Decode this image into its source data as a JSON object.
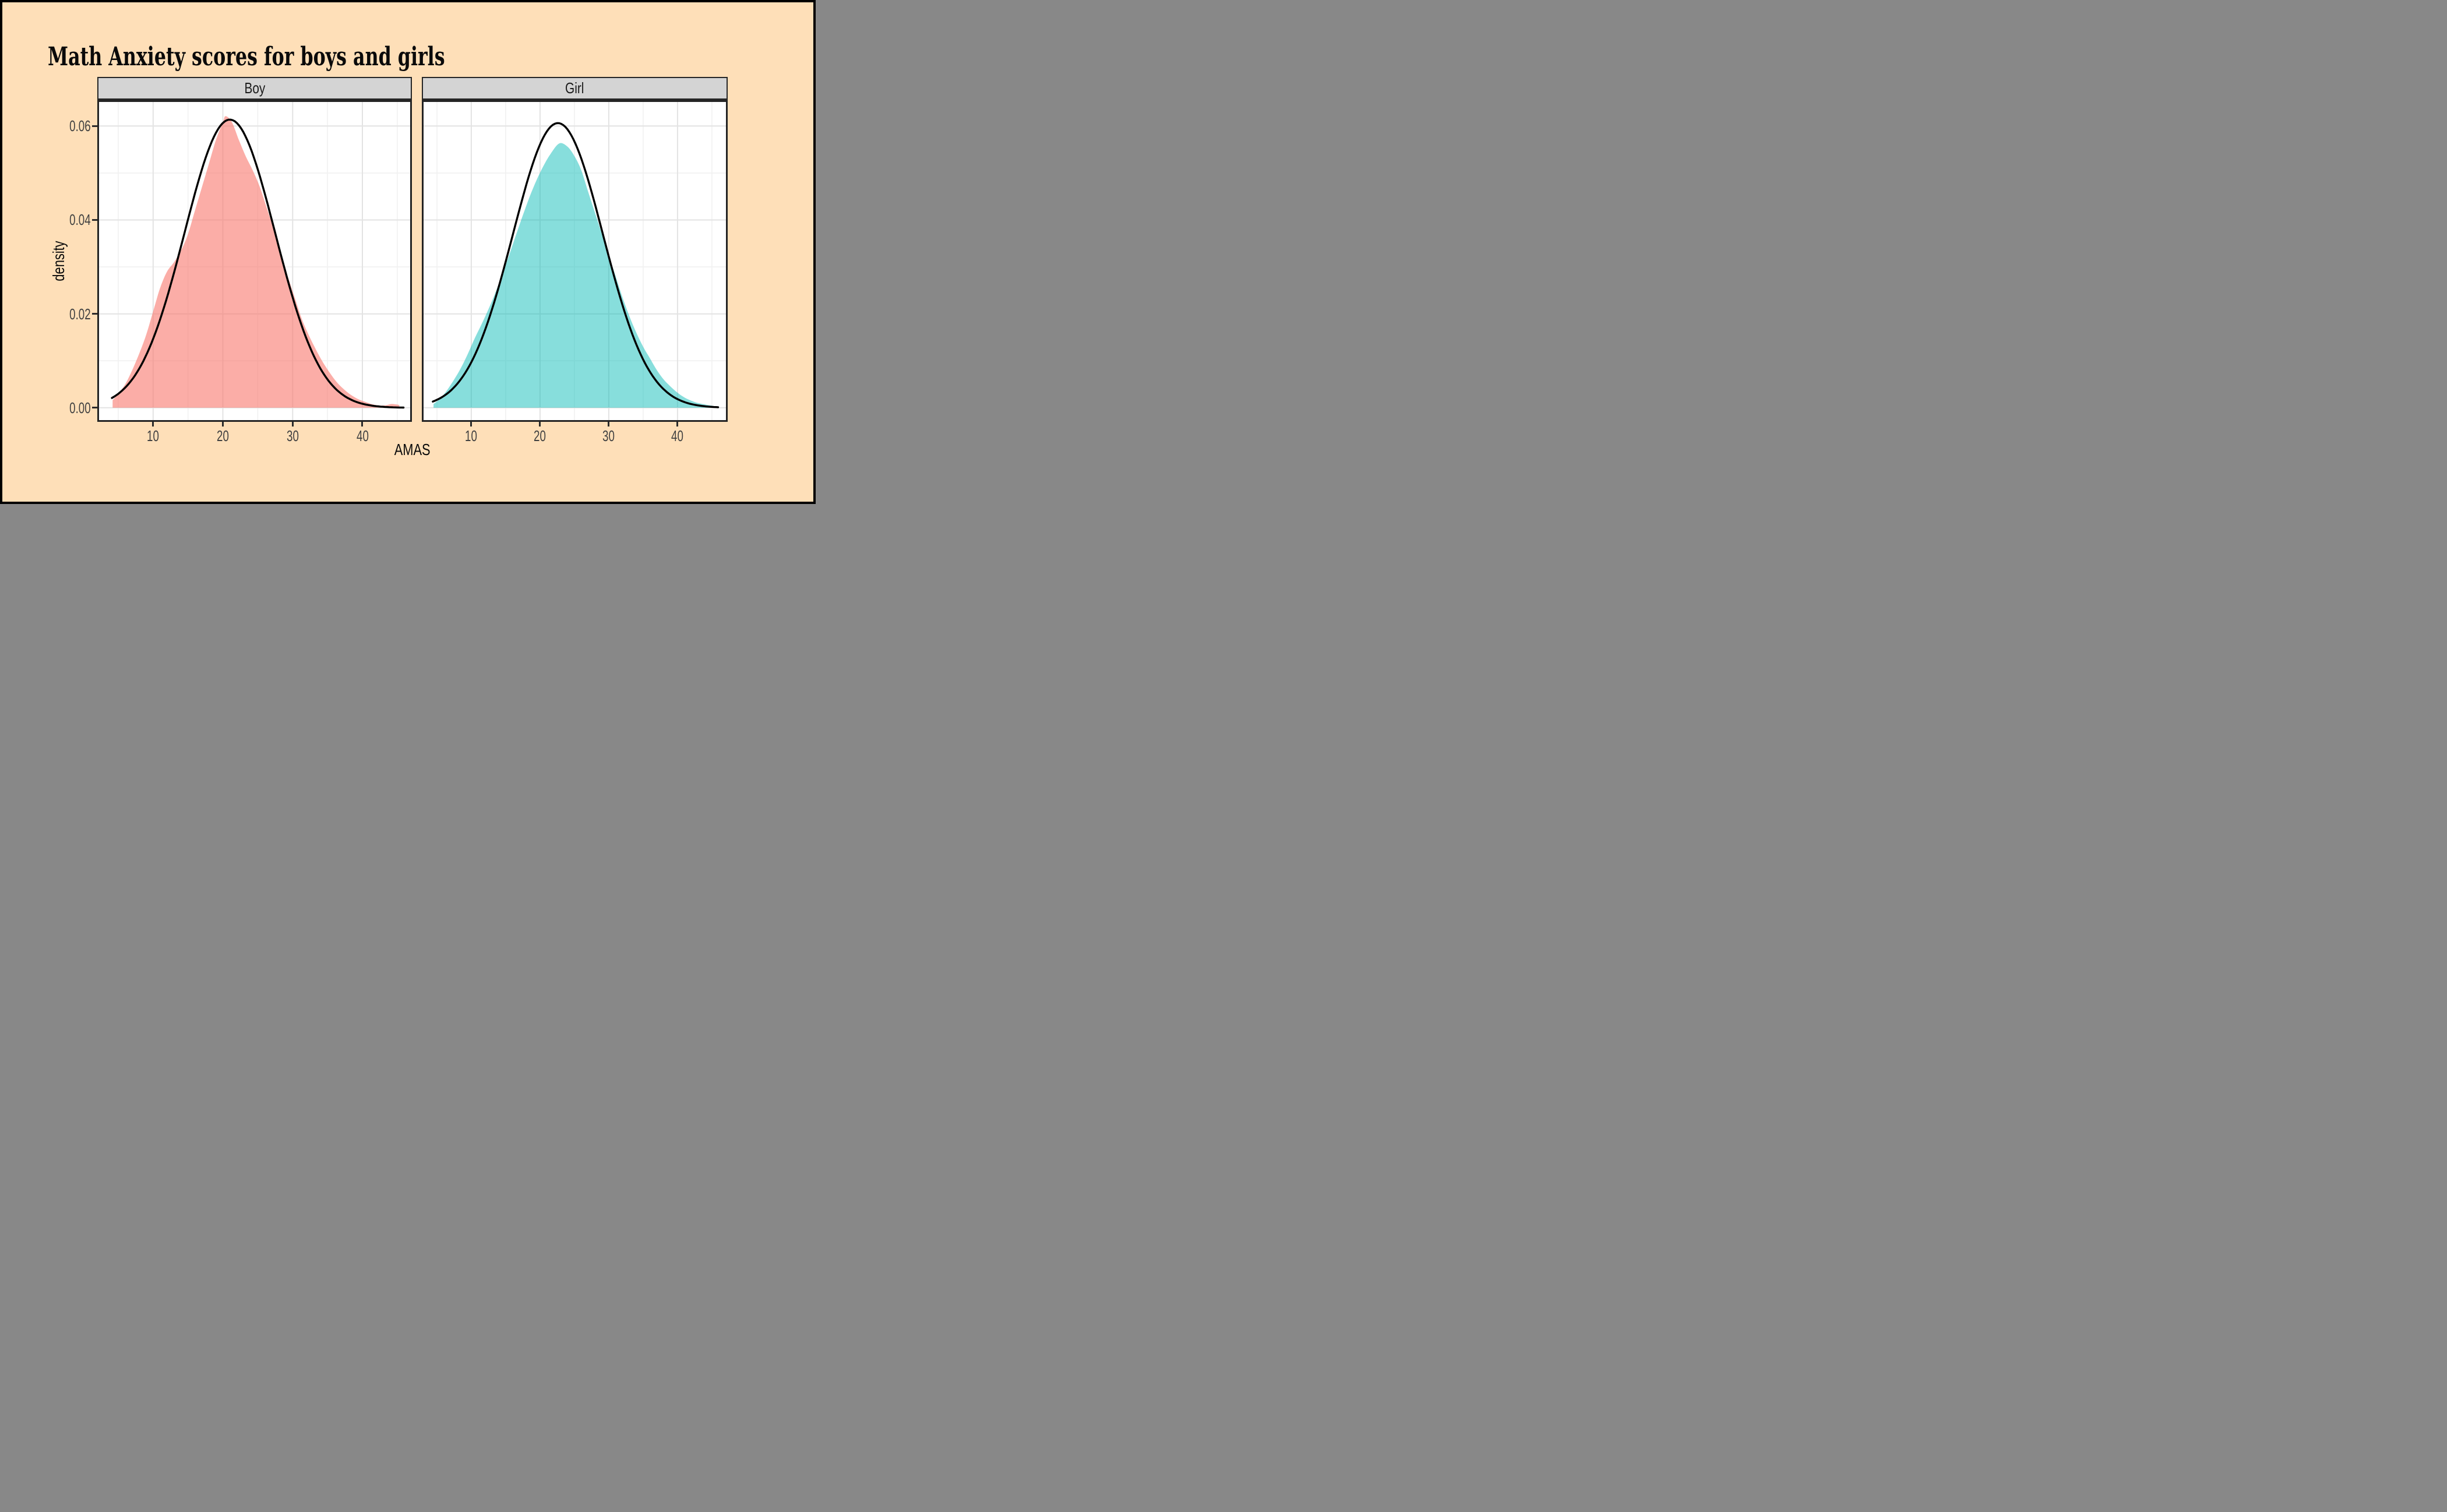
{
  "chart_data": {
    "type": "area",
    "title": "Math Anxiety scores for boys and girls",
    "xlabel": "AMAS",
    "ylabel": "density",
    "legend": "none",
    "grid": true,
    "ylim": [
      -0.003,
      0.0655
    ],
    "y_ticks": [
      {
        "v": 0.0,
        "label": "0.00"
      },
      {
        "v": 0.02,
        "label": "0.02"
      },
      {
        "v": 0.04,
        "label": "0.04"
      },
      {
        "v": 0.06,
        "label": "0.06"
      }
    ],
    "y_minor": [
      0.01,
      0.03,
      0.05
    ],
    "x_ticks": [
      {
        "v": 10,
        "label": "10"
      },
      {
        "v": 20,
        "label": "20"
      },
      {
        "v": 30,
        "label": "30"
      },
      {
        "v": 40,
        "label": "40"
      }
    ],
    "x_minor": [
      5,
      15,
      25,
      35,
      45
    ],
    "colors": {
      "background": "#FEDFB8",
      "panel_bg": "#FFFFFF",
      "strip_bg": "#D4D4D4",
      "strip_text": "#1A1A1A",
      "grid_major": "#E3E3E3",
      "grid_minor": "#F1F1F1",
      "panel_border": "#242424",
      "tick_mark": "#2B2B2B",
      "tick_label": "#404040",
      "curve": "#000000",
      "boy_fill": "rgba(248,118,109,0.60)",
      "girl_fill": "rgba(0,185,180,0.47)",
      "outer_border": "#000000",
      "title_text": "#0A0A0A"
    },
    "facets": [
      {
        "label": "Boy",
        "fill": "rgba(248,118,109,0.60)",
        "xlim": [
          2.0,
          47.1
        ],
        "density": [
          [
            4.2,
            0.0016
          ],
          [
            5,
            0.003
          ],
          [
            6,
            0.005
          ],
          [
            7,
            0.008
          ],
          [
            8,
            0.0115
          ],
          [
            9,
            0.0155
          ],
          [
            10,
            0.0205
          ],
          [
            11,
            0.0255
          ],
          [
            12,
            0.029
          ],
          [
            13,
            0.031
          ],
          [
            14,
            0.0335
          ],
          [
            15,
            0.037
          ],
          [
            16,
            0.042
          ],
          [
            17,
            0.047
          ],
          [
            18,
            0.052
          ],
          [
            19,
            0.057
          ],
          [
            20,
            0.0608
          ],
          [
            20.4,
            0.0621
          ],
          [
            21.3,
            0.0608
          ],
          [
            22.3,
            0.057
          ],
          [
            23.3,
            0.0535
          ],
          [
            24.3,
            0.0505
          ],
          [
            25.3,
            0.047
          ],
          [
            26.3,
            0.0425
          ],
          [
            27.3,
            0.038
          ],
          [
            28.3,
            0.033
          ],
          [
            29.3,
            0.028
          ],
          [
            30.3,
            0.0235
          ],
          [
            31.3,
            0.019
          ],
          [
            32.3,
            0.0155
          ],
          [
            33.3,
            0.0125
          ],
          [
            34.3,
            0.0098
          ],
          [
            35.3,
            0.0075
          ],
          [
            36.3,
            0.0055
          ],
          [
            37.3,
            0.004
          ],
          [
            38.3,
            0.0028
          ],
          [
            39.3,
            0.0019
          ],
          [
            40.3,
            0.0013
          ],
          [
            41.3,
            0.0008
          ],
          [
            42.3,
            0.0005
          ],
          [
            43.3,
            0.0005
          ],
          [
            44.2,
            0.0008
          ],
          [
            45.3,
            0.0006
          ]
        ],
        "normal": {
          "mean": 21.0,
          "sd": 6.5,
          "from": 4.1,
          "to": 45.9,
          "peak": 0.0614
        }
      },
      {
        "label": "Girl",
        "fill": "rgba(0,185,180,0.47)",
        "xlim": [
          2.8,
          47.3
        ],
        "density": [
          [
            4.5,
            0.0008
          ],
          [
            5.5,
            0.002
          ],
          [
            6.5,
            0.0038
          ],
          [
            7.5,
            0.006
          ],
          [
            8.5,
            0.0085
          ],
          [
            9.5,
            0.0115
          ],
          [
            10.5,
            0.0148
          ],
          [
            11.5,
            0.0178
          ],
          [
            12.5,
            0.021
          ],
          [
            13.5,
            0.0245
          ],
          [
            14.5,
            0.0285
          ],
          [
            15.5,
            0.0325
          ],
          [
            16.5,
            0.0368
          ],
          [
            17.5,
            0.041
          ],
          [
            18.5,
            0.045
          ],
          [
            19.5,
            0.0485
          ],
          [
            20.5,
            0.0515
          ],
          [
            21.5,
            0.054
          ],
          [
            22.8,
            0.0563
          ],
          [
            24,
            0.0556
          ],
          [
            25,
            0.0536
          ],
          [
            26,
            0.0506
          ],
          [
            27,
            0.046
          ],
          [
            28,
            0.0415
          ],
          [
            29,
            0.037
          ],
          [
            30,
            0.0325
          ],
          [
            31,
            0.028
          ],
          [
            32,
            0.0235
          ],
          [
            33,
            0.0195
          ],
          [
            34,
            0.016
          ],
          [
            35,
            0.013
          ],
          [
            36,
            0.0105
          ],
          [
            37,
            0.008
          ],
          [
            38,
            0.006
          ],
          [
            39,
            0.0045
          ],
          [
            40,
            0.0032
          ],
          [
            41,
            0.0022
          ],
          [
            42,
            0.0015
          ],
          [
            43,
            0.001
          ],
          [
            44,
            0.0007
          ],
          [
            45.2,
            0.0004
          ]
        ],
        "normal": {
          "mean": 22.6,
          "sd": 6.58,
          "from": 4.4,
          "to": 45.9,
          "peak": 0.0607
        }
      }
    ]
  }
}
